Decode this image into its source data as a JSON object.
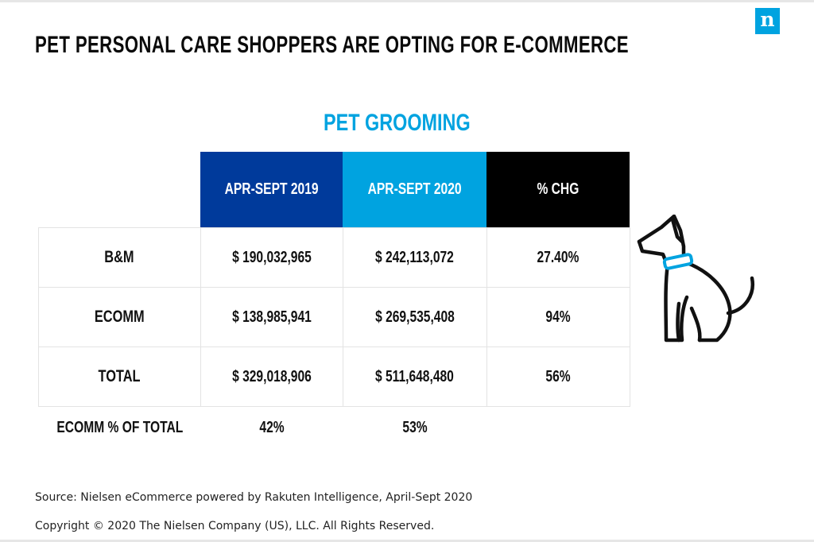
{
  "brand": {
    "logo_letter": "n",
    "accent": "#00a3e0"
  },
  "title": "PET PERSONAL CARE SHOPPERS ARE OPTING FOR E-COMMERCE",
  "chart_data": {
    "type": "table",
    "title": "PET GROOMING",
    "columns": [
      "APR-SEPT 2019",
      "APR-SEPT 2020",
      "% CHG"
    ],
    "column_colors": [
      "#003a9b",
      "#00a3e0",
      "#000000"
    ],
    "rows": [
      {
        "label": "B&M",
        "values": [
          "$ 190,032,965",
          "$ 242,113,072",
          "27.40%"
        ]
      },
      {
        "label": "ECOMM",
        "values": [
          "$ 138,985,941",
          "$ 269,535,408",
          "94%"
        ]
      },
      {
        "label": "TOTAL",
        "values": [
          "$ 329,018,906",
          "$ 511,648,480",
          "56%"
        ]
      }
    ],
    "share_row": {
      "label": "ECOMM % OF TOTAL",
      "values": [
        "42%",
        "53%",
        ""
      ]
    }
  },
  "illustration": {
    "icon": "dog-icon",
    "collar_color": "#00a3e0"
  },
  "footer": {
    "source": "Source: Nielsen eCommerce powered by Rakuten Intelligence, April-Sept 2020",
    "copyright": "Copyright © 2020 The Nielsen Company (US), LLC. All Rights Reserved."
  }
}
